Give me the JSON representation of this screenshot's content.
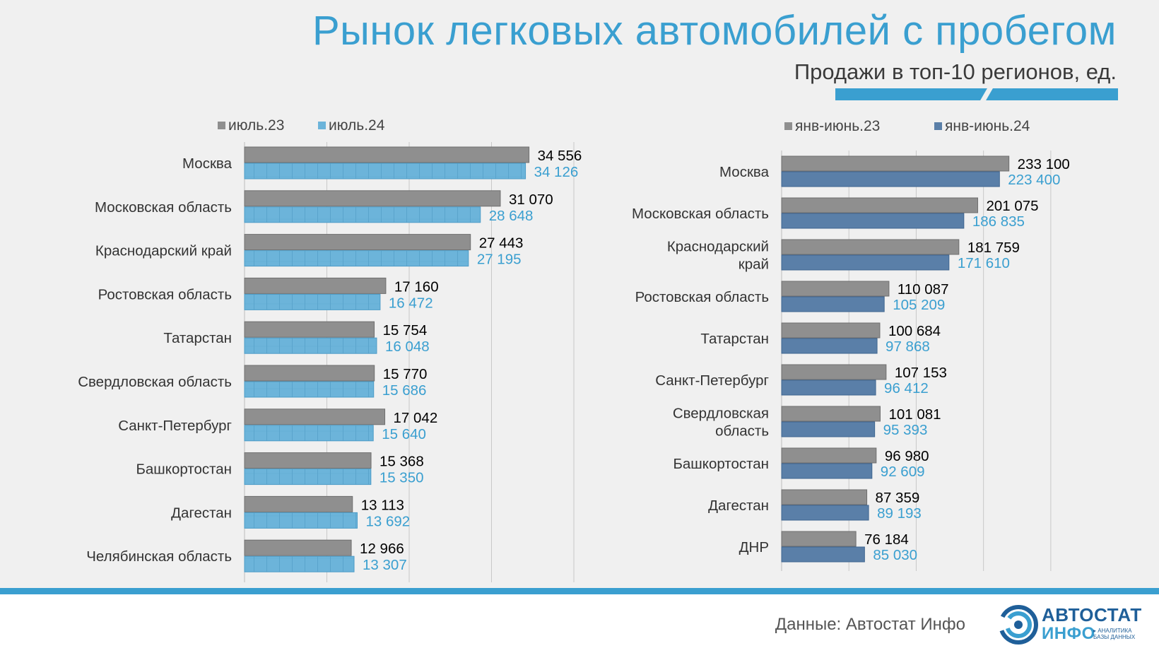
{
  "header": {
    "title": "Рынок легковых автомобилей с пробегом",
    "subtitle": "Продажи в топ-10 регионов, ед."
  },
  "footer": {
    "source": "Данные: Автостат Инфо",
    "logo_brand_part1": "АВТОСТАТ",
    "logo_brand_part2": "ИНФО",
    "logo_tagline_1": "▸ АНАЛИТИКА",
    "logo_tagline_2": "БАЗЫ ДАННЫХ"
  },
  "colors": {
    "accent": "#3a9fd0",
    "gray_bar": "#8f8f8f",
    "light_blue_bar": "#6cb4da",
    "dark_blue_bar": "#5a7fa8",
    "value_dark": "#000000",
    "value_light_blue": "#3a9fd0",
    "value_dark_blue": "#3a9fd0"
  },
  "chart_data": [
    {
      "type": "bar",
      "orientation": "horizontal",
      "title": "",
      "categories": [
        "Москва",
        "Московская область",
        "Краснодарский край",
        "Ростовская область",
        "Татарстан",
        "Свердловская область",
        "Санкт-Петербург",
        "Башкортостан",
        "Дагестан",
        "Челябинская область"
      ],
      "series": [
        {
          "name": "июль.23",
          "values": [
            34556,
            31070,
            27443,
            17160,
            15754,
            15770,
            17042,
            15368,
            13113,
            12966
          ],
          "labels": [
            "34 556",
            "31 070",
            "27 443",
            "17 160",
            "15 754",
            "15 770",
            "17 042",
            "15 368",
            "13 113",
            "12 966"
          ]
        },
        {
          "name": "июль.24",
          "values": [
            34126,
            28648,
            27195,
            16472,
            16048,
            15686,
            15640,
            15350,
            13692,
            13307
          ],
          "labels": [
            "34 126",
            "28 648",
            "27 195",
            "16 472",
            "16 048",
            "15 686",
            "15 640",
            "15 350",
            "13 692",
            "13 307"
          ]
        }
      ],
      "xlim": [
        0,
        40000
      ],
      "grid": true,
      "legend": "top"
    },
    {
      "type": "bar",
      "orientation": "horizontal",
      "title": "",
      "categories": [
        "Москва",
        "Московская область",
        "Краснодарский край",
        "Ростовская область",
        "Татарстан",
        "Санкт-Петербург",
        "Свердловская область",
        "Башкортостан",
        "Дагестан",
        "ДНР"
      ],
      "series": [
        {
          "name": "янв-июнь.23",
          "values": [
            233100,
            201075,
            181759,
            110087,
            100684,
            107153,
            101081,
            96980,
            87359,
            76184
          ],
          "labels": [
            "233 100",
            "201 075",
            "181 759",
            "110 087",
            "100 684",
            "107 153",
            "101 081",
            "96 980",
            "87 359",
            "76 184"
          ]
        },
        {
          "name": "янв-июнь.24",
          "values": [
            223400,
            186835,
            171610,
            105209,
            97868,
            96412,
            95393,
            92609,
            89193,
            85030
          ],
          "labels": [
            "223 400",
            "186 835",
            "171 610",
            "105 209",
            "97 868",
            "96 412",
            "95 393",
            "92 609",
            "89 193",
            "85 030"
          ]
        }
      ],
      "xlim": [
        0,
        300000
      ],
      "grid": true,
      "legend": "top"
    }
  ]
}
